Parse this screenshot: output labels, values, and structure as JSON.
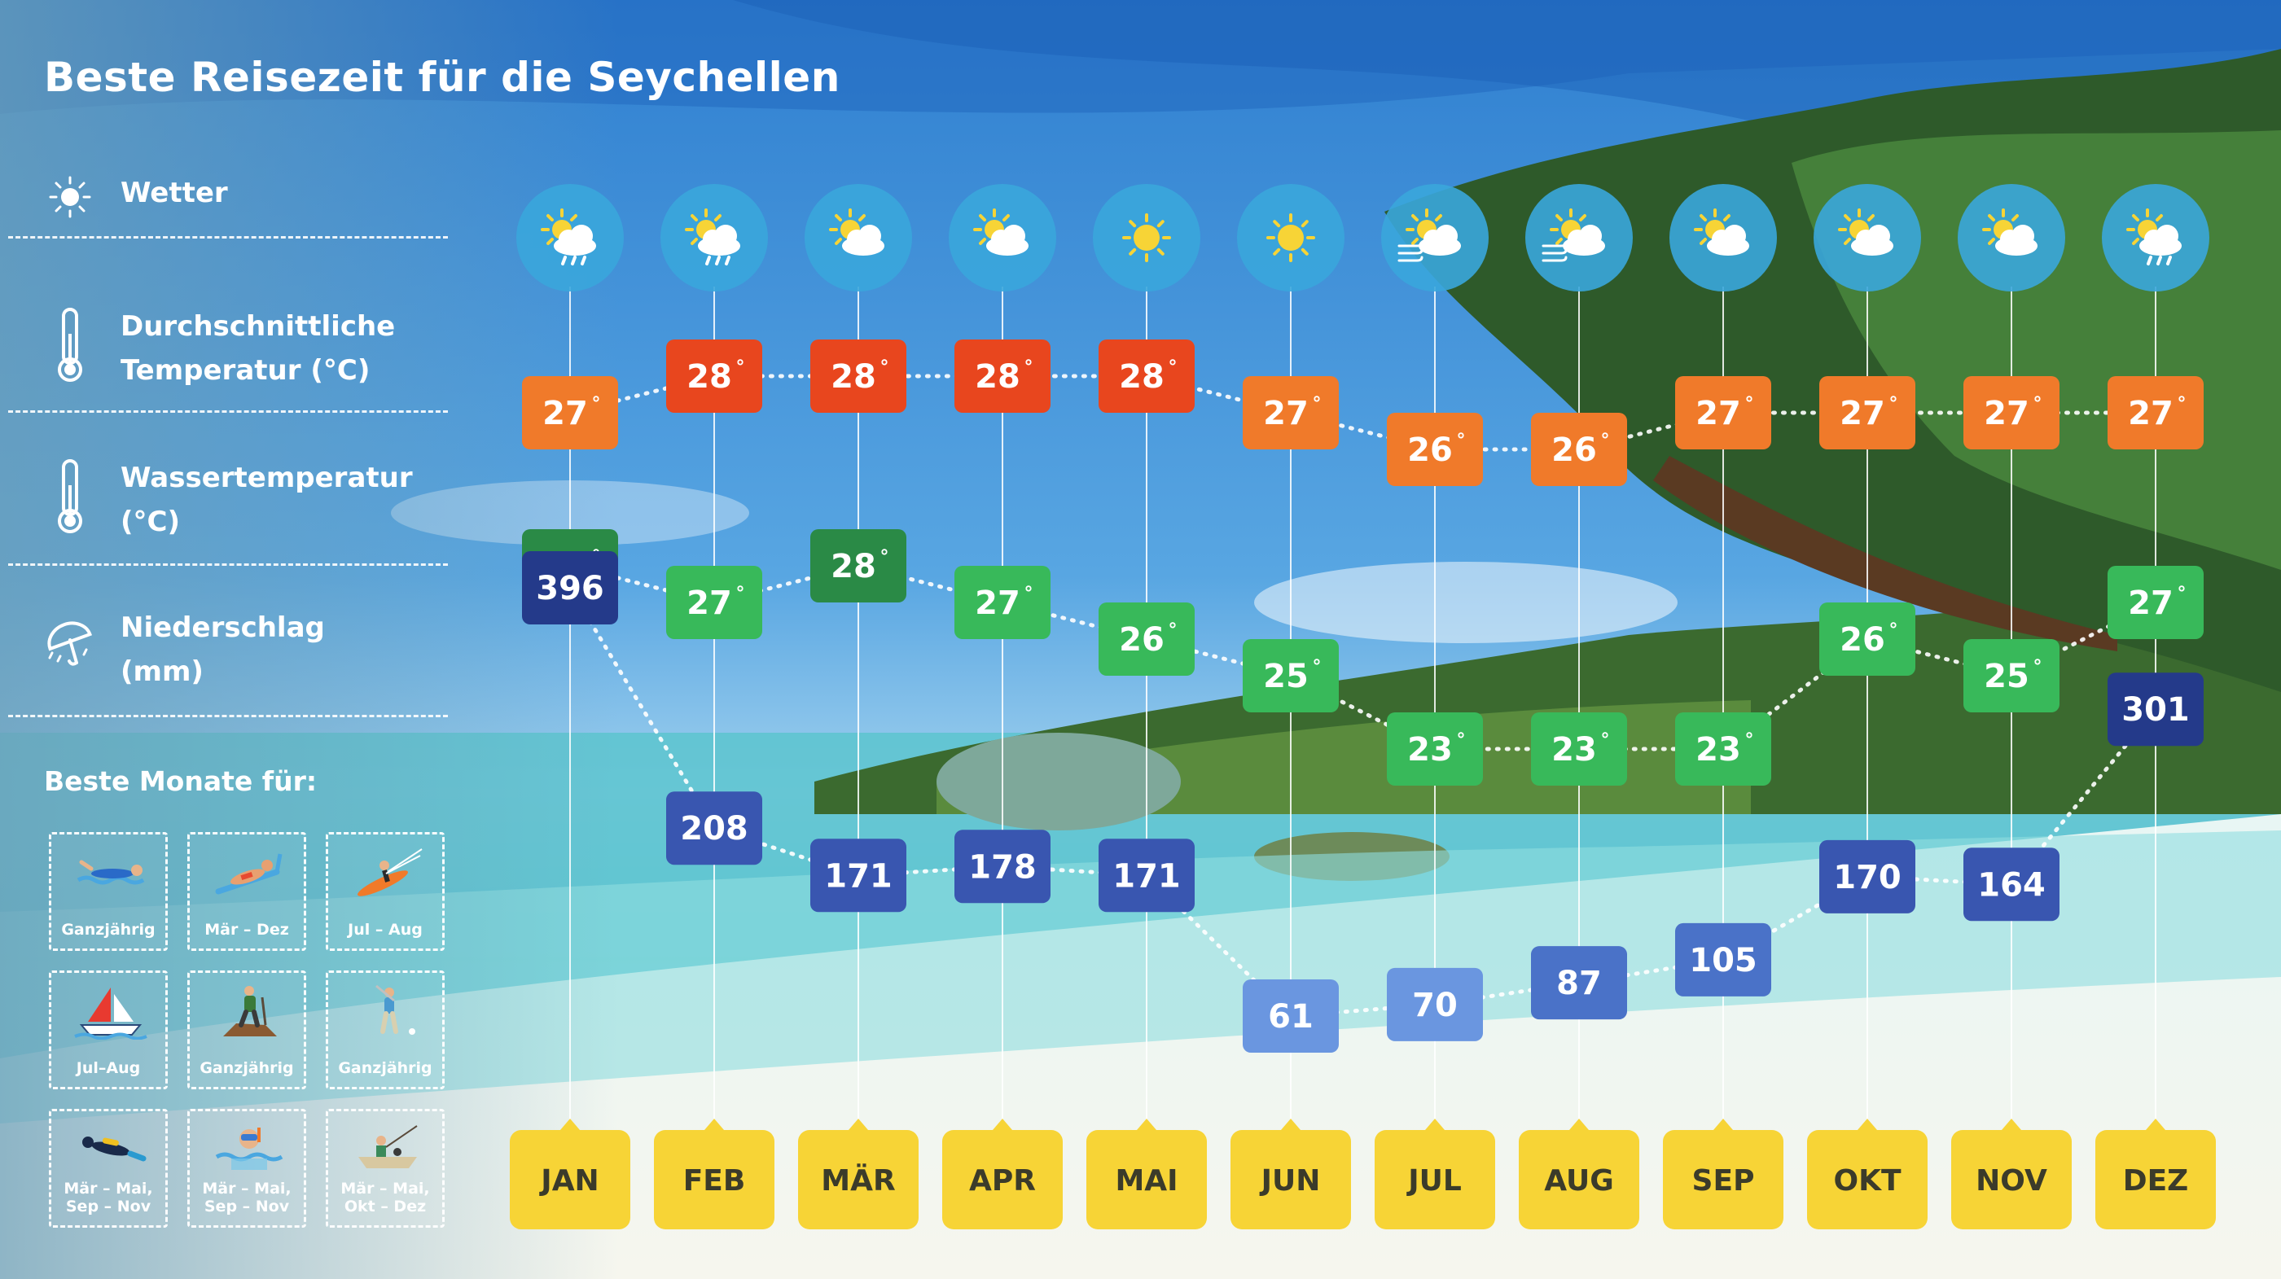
{
  "title": "Beste Reisezeit für die Seychellen",
  "legend": [
    {
      "icon": "sun-icon",
      "label": "Wetter"
    },
    {
      "icon": "thermometer-icon",
      "label": "Durchschnittliche\nTemperatur (°C)"
    },
    {
      "icon": "thermometer-icon",
      "label": "Wassertemperatur\n(°C)"
    },
    {
      "icon": "umbrella-rain-icon",
      "label": "Niederschlag\n(mm)"
    }
  ],
  "best_months": {
    "title": "Beste Monate für:",
    "activities": [
      {
        "icon": "swimmer-icon",
        "label": "Ganzjährig"
      },
      {
        "icon": "sunbather-icon",
        "label": "Mär – Dez"
      },
      {
        "icon": "kitesurfer-icon",
        "label": "Jul – Aug"
      },
      {
        "icon": "sailboat-icon",
        "label": "Jul–Aug"
      },
      {
        "icon": "hiker-icon",
        "label": "Ganzjährig"
      },
      {
        "icon": "golfer-icon",
        "label": "Ganzjährig"
      },
      {
        "icon": "scuba-diver-icon",
        "label": "Mär – Mai,\nSep – Nov"
      },
      {
        "icon": "snorkeler-icon",
        "label": "Mär – Mai,\nSep – Nov"
      },
      {
        "icon": "fisher-boat-icon",
        "label": "Mär – Mai,\nOkt – Dez"
      }
    ]
  },
  "colors": {
    "temp_hot": "#e8461e",
    "temp_warm": "#f07a2a",
    "water_dark": "#2a8a46",
    "water_light": "#38b95a",
    "rain_darkest": "#243a8a",
    "rain_dark": "#3956b0",
    "rain_mid": "#4a72c8",
    "rain_light": "#6a96e0",
    "month_label_bg": "#f7d436"
  },
  "chart_data": {
    "type": "line",
    "categories": [
      "JAN",
      "FEB",
      "MÄR",
      "APR",
      "MAI",
      "JUN",
      "JUL",
      "AUG",
      "SEP",
      "OKT",
      "NOV",
      "DEZ"
    ],
    "weather": [
      "sun-cloud-rain-icon",
      "sun-cloud-rain-icon",
      "sun-cloud-icon",
      "sun-cloud-icon",
      "sun-icon",
      "sun-icon",
      "sun-cloud-wind-icon",
      "sun-cloud-wind-icon",
      "sun-cloud-icon",
      "sun-cloud-icon",
      "sun-cloud-icon",
      "sun-cloud-rain-icon"
    ],
    "series": [
      {
        "name": "Durchschnittliche Temperatur (°C)",
        "values": [
          27,
          28,
          28,
          28,
          28,
          27,
          26,
          26,
          27,
          27,
          27,
          27
        ],
        "unit": "°"
      },
      {
        "name": "Wassertemperatur (°C)",
        "values": [
          28,
          27,
          28,
          27,
          26,
          25,
          23,
          23,
          23,
          26,
          25,
          27
        ],
        "unit": "°"
      },
      {
        "name": "Niederschlag (mm)",
        "values": [
          396,
          208,
          171,
          178,
          171,
          61,
          70,
          87,
          105,
          170,
          164,
          301
        ],
        "unit": ""
      }
    ]
  }
}
